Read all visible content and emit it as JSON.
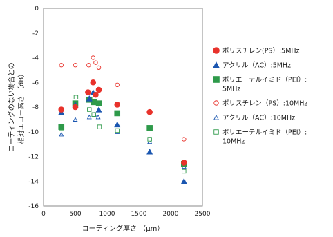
{
  "chart_data": {
    "type": "scatter",
    "xlabel": "コーティング厚さ （μm）",
    "ylabel_lines": [
      "コーティングのない場合との",
      "相対エコー高さ （dB）"
    ],
    "xlim": [
      0,
      2500
    ],
    "ylim": [
      -16,
      0
    ],
    "x_ticks": [
      0,
      500,
      1000,
      1500,
      2000,
      2500
    ],
    "y_ticks": [
      0,
      -2,
      -4,
      -6,
      -8,
      -10,
      -12,
      -14,
      -16
    ],
    "grid": false,
    "legend_position": "right",
    "series": [
      {
        "name_lines": [
          "ポリスチレン(PS）:5MHz"
        ],
        "marker": "circle",
        "filled": true,
        "color": "#e8322b",
        "points": [
          [
            280,
            -8.2
          ],
          [
            500,
            -8.0
          ],
          [
            700,
            -6.8
          ],
          [
            780,
            -6.0
          ],
          [
            820,
            -7.0
          ],
          [
            870,
            -6.6
          ],
          [
            1160,
            -7.8
          ],
          [
            1670,
            -8.4
          ],
          [
            2210,
            -12.5
          ]
        ]
      },
      {
        "name_lines": [
          "アクリル（AC）:5MHz"
        ],
        "marker": "triangle",
        "filled": true,
        "color": "#1a56b0",
        "points": [
          [
            280,
            -8.4
          ],
          [
            500,
            -7.8
          ],
          [
            720,
            -7.3
          ],
          [
            780,
            -6.8
          ],
          [
            870,
            -8.2
          ],
          [
            1160,
            -9.4
          ],
          [
            1670,
            -11.6
          ],
          [
            2210,
            -14.0
          ]
        ]
      },
      {
        "name_lines": [
          "ポリエーテルイミド（PEI）:",
          "5MHz"
        ],
        "marker": "square",
        "filled": true,
        "color": "#2e9a4a",
        "points": [
          [
            280,
            -9.6
          ],
          [
            500,
            -7.7
          ],
          [
            720,
            -7.4
          ],
          [
            790,
            -7.6
          ],
          [
            870,
            -7.7
          ],
          [
            1160,
            -8.5
          ],
          [
            1670,
            -9.7
          ],
          [
            2210,
            -12.6
          ]
        ]
      },
      {
        "name_lines": [
          "ポリスチレン（PS）:10MHz"
        ],
        "marker": "circle",
        "filled": false,
        "color": "#e8322b",
        "points": [
          [
            280,
            -4.6
          ],
          [
            500,
            -4.6
          ],
          [
            710,
            -4.6
          ],
          [
            780,
            -4.0
          ],
          [
            820,
            -4.4
          ],
          [
            870,
            -4.8
          ],
          [
            1160,
            -6.2
          ],
          [
            1670,
            -8.4
          ],
          [
            2210,
            -10.6
          ]
        ]
      },
      {
        "name_lines": [
          "アクリル（AC）:10MHz"
        ],
        "marker": "triangle",
        "filled": false,
        "color": "#1a56b0",
        "points": [
          [
            280,
            -10.2
          ],
          [
            500,
            -9.0
          ],
          [
            720,
            -8.8
          ],
          [
            800,
            -8.6
          ],
          [
            860,
            -8.8
          ],
          [
            1160,
            -10.0
          ],
          [
            1670,
            -10.8
          ],
          [
            2210,
            -12.8
          ]
        ]
      },
      {
        "name_lines": [
          "ポリエーテルイミド（PEI）:",
          "10MHz"
        ],
        "marker": "square",
        "filled": false,
        "color": "#2e9a4a",
        "points": [
          [
            280,
            -9.7
          ],
          [
            510,
            -7.2
          ],
          [
            720,
            -8.2
          ],
          [
            790,
            -8.6
          ],
          [
            880,
            -9.6
          ],
          [
            1160,
            -9.9
          ],
          [
            1670,
            -10.6
          ],
          [
            2210,
            -13.2
          ]
        ]
      }
    ]
  }
}
